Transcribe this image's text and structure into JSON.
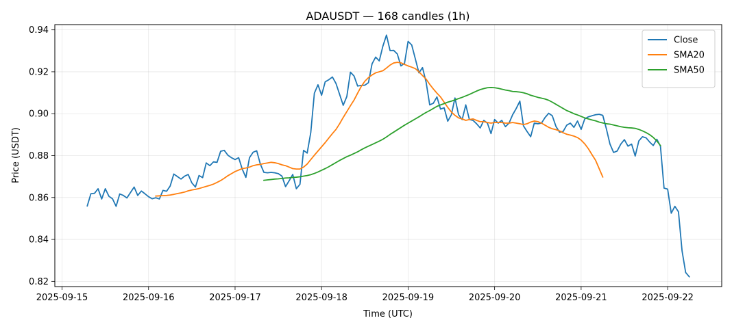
{
  "chart_data": {
    "type": "line",
    "title": "ADAUSDT — 168 candles (1h)",
    "xlabel": "Time (UTC)",
    "ylabel": "Price (USDT)",
    "x_ticks": [
      "2025-09-15",
      "2025-09-16",
      "2025-09-17",
      "2025-09-18",
      "2025-09-19",
      "2025-09-20",
      "2025-09-21",
      "2025-09-22"
    ],
    "y_ticks": [
      "0.82",
      "0.84",
      "0.86",
      "0.88",
      "0.90",
      "0.92",
      "0.94"
    ],
    "xlim": [
      "2025-09-14T22:00",
      "2025-09-22T15:00"
    ],
    "ylim": [
      0.8175,
      0.9425
    ],
    "grid": true,
    "legend_position": "top-right",
    "series": [
      {
        "name": "Close",
        "color": "#1f77b4",
        "x_start": "2025-09-15T07:00",
        "x_step_hours": 1,
        "values": [
          0.856,
          0.8618,
          0.862,
          0.8642,
          0.8593,
          0.8642,
          0.8606,
          0.8594,
          0.8558,
          0.8617,
          0.861,
          0.8598,
          0.8624,
          0.865,
          0.861,
          0.8631,
          0.8618,
          0.8604,
          0.8594,
          0.8599,
          0.8593,
          0.8634,
          0.863,
          0.8655,
          0.8712,
          0.87,
          0.8688,
          0.8702,
          0.871,
          0.867,
          0.865,
          0.8705,
          0.8695,
          0.8765,
          0.8752,
          0.877,
          0.8768,
          0.8821,
          0.8825,
          0.8802,
          0.879,
          0.8781,
          0.879,
          0.8735,
          0.8696,
          0.879,
          0.8816,
          0.8823,
          0.876,
          0.872,
          0.8718,
          0.872,
          0.8718,
          0.8714,
          0.8702,
          0.8652,
          0.868,
          0.871,
          0.8642,
          0.8663,
          0.8825,
          0.8812,
          0.891,
          0.9098,
          0.9138,
          0.9088,
          0.9152,
          0.9162,
          0.9175,
          0.9144,
          0.9092,
          0.904,
          0.9082,
          0.9198,
          0.918,
          0.9132,
          0.9135,
          0.9136,
          0.9148,
          0.9238,
          0.927,
          0.9252,
          0.9322,
          0.9375,
          0.9301,
          0.9302,
          0.9285,
          0.9228,
          0.924,
          0.9345,
          0.9328,
          0.9262,
          0.9195,
          0.922,
          0.915,
          0.9042,
          0.905,
          0.908,
          0.9022,
          0.9028,
          0.8964,
          0.8995,
          0.9075,
          0.8995,
          0.8972,
          0.9042,
          0.8972,
          0.8968,
          0.8952,
          0.8932,
          0.8968,
          0.8955,
          0.8905,
          0.8972,
          0.8955,
          0.8968,
          0.8938,
          0.8955,
          0.8995,
          0.9025,
          0.906,
          0.8942,
          0.8915,
          0.889,
          0.8955,
          0.8952,
          0.8955,
          0.8982,
          0.9002,
          0.899,
          0.894,
          0.8912,
          0.8915,
          0.8945,
          0.8955,
          0.8935,
          0.8965,
          0.8925,
          0.8975,
          0.8985,
          0.899,
          0.8995,
          0.8997,
          0.8992,
          0.8928,
          0.8855,
          0.8815,
          0.8822,
          0.8855,
          0.8876,
          0.8845,
          0.8855,
          0.8798,
          0.887,
          0.889,
          0.8885,
          0.8865,
          0.8848,
          0.8878,
          0.8845,
          0.8645,
          0.864,
          0.8525,
          0.8558,
          0.8532,
          0.8345,
          0.8242,
          0.8222
        ]
      },
      {
        "name": "SMA20",
        "color": "#ff7f0e",
        "x_start": "2025-09-16T02:00",
        "x_step_hours": 1,
        "values": [
          0.8607,
          0.8608,
          0.8609,
          0.861,
          0.8612,
          0.8615,
          0.8619,
          0.8622,
          0.8626,
          0.8632,
          0.8636,
          0.8639,
          0.8643,
          0.8648,
          0.8653,
          0.8658,
          0.8664,
          0.8672,
          0.8681,
          0.8692,
          0.8704,
          0.8714,
          0.8724,
          0.8731,
          0.8738,
          0.8741,
          0.8745,
          0.8752,
          0.8756,
          0.8758,
          0.8762,
          0.8765,
          0.8768,
          0.8766,
          0.8762,
          0.8756,
          0.8752,
          0.8745,
          0.8738,
          0.8736,
          0.8736,
          0.8745,
          0.876,
          0.8781,
          0.8802,
          0.8822,
          0.8842,
          0.8862,
          0.8884,
          0.8905,
          0.8925,
          0.8952,
          0.8982,
          0.901,
          0.9038,
          0.9065,
          0.9098,
          0.913,
          0.9155,
          0.9172,
          0.9185,
          0.9195,
          0.92,
          0.9205,
          0.9218,
          0.9232,
          0.9242,
          0.9245,
          0.9243,
          0.9235,
          0.9228,
          0.9222,
          0.9215,
          0.92,
          0.9182,
          0.9165,
          0.914,
          0.9118,
          0.9098,
          0.908,
          0.9055,
          0.903,
          0.9008,
          0.8992,
          0.898,
          0.8975,
          0.8968,
          0.8972,
          0.8975,
          0.8968,
          0.8962,
          0.8962,
          0.8958,
          0.8955,
          0.8958,
          0.8958,
          0.8958,
          0.8955,
          0.8955,
          0.8958,
          0.8955,
          0.8952,
          0.8948,
          0.8952,
          0.896,
          0.8965,
          0.8962,
          0.8955,
          0.8945,
          0.8935,
          0.8928,
          0.8924,
          0.8918,
          0.8909,
          0.8902,
          0.8898,
          0.8893,
          0.8886,
          0.8874,
          0.8856,
          0.8833,
          0.8805,
          0.8778,
          0.8738,
          0.8698
        ]
      },
      {
        "name": "SMA50",
        "color": "#2ca02c",
        "x_start": "2025-09-17T08:00",
        "x_step_hours": 1,
        "values": [
          0.8682,
          0.8684,
          0.8686,
          0.8688,
          0.8689,
          0.8691,
          0.8693,
          0.8694,
          0.8696,
          0.8697,
          0.8699,
          0.8702,
          0.8705,
          0.8709,
          0.8715,
          0.8722,
          0.873,
          0.8738,
          0.8747,
          0.8757,
          0.8767,
          0.8777,
          0.8786,
          0.8795,
          0.8802,
          0.881,
          0.8818,
          0.8828,
          0.8837,
          0.8845,
          0.8853,
          0.8861,
          0.8869,
          0.8878,
          0.8889,
          0.8901,
          0.8912,
          0.8923,
          0.8934,
          0.8945,
          0.8955,
          0.8965,
          0.8975,
          0.8985,
          0.8996,
          0.9006,
          0.9015,
          0.9025,
          0.9035,
          0.9042,
          0.9048,
          0.9055,
          0.906,
          0.9066,
          0.9072,
          0.9078,
          0.9085,
          0.9092,
          0.91,
          0.9108,
          0.9115,
          0.912,
          0.9124,
          0.9125,
          0.9124,
          0.9121,
          0.9117,
          0.9113,
          0.911,
          0.9106,
          0.9105,
          0.9103,
          0.91,
          0.9095,
          0.9088,
          0.9083,
          0.9078,
          0.9074,
          0.907,
          0.9064,
          0.9055,
          0.9045,
          0.9035,
          0.9025,
          0.9015,
          0.9008,
          0.9,
          0.8994,
          0.8987,
          0.898,
          0.8975,
          0.897,
          0.8966,
          0.896,
          0.8956,
          0.8952,
          0.895,
          0.8946,
          0.8942,
          0.8938,
          0.8935,
          0.8933,
          0.8932,
          0.893,
          0.8925,
          0.8918,
          0.891,
          0.89,
          0.8887,
          0.887,
          0.8848
        ]
      }
    ]
  }
}
